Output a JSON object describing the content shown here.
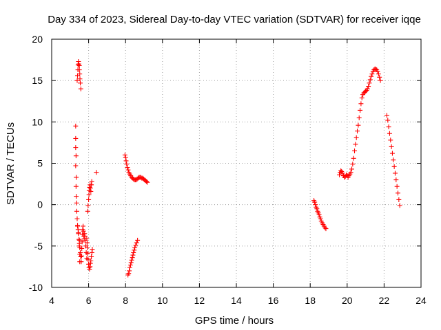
{
  "chart_data": {
    "type": "scatter",
    "title": "Day 334 of 2023, Sidereal Day-to-day VTEC variation (SDTVAR) for receiver iqqe",
    "xlabel": "GPS time / hours",
    "ylabel": "SDTVAR / TECUs",
    "xlim": [
      4,
      24
    ],
    "ylim": [
      -10,
      20
    ],
    "xticks": [
      "4",
      "6",
      "8",
      "10",
      "12",
      "14",
      "16",
      "18",
      "20",
      "22",
      "24"
    ],
    "yticks": [
      "-10",
      "-5",
      "0",
      "5",
      "10",
      "15",
      "20"
    ],
    "grid": true,
    "marker": "+",
    "color": "#ff0000",
    "series": [
      {
        "name": "SDTVAR",
        "points": [
          [
            5.3,
            9.5
          ],
          [
            5.3,
            8.0
          ],
          [
            5.3,
            6.9
          ],
          [
            5.32,
            5.9
          ],
          [
            5.3,
            4.7
          ],
          [
            5.33,
            3.3
          ],
          [
            5.32,
            2.2
          ],
          [
            5.33,
            1.0
          ],
          [
            5.35,
            0.2
          ],
          [
            5.36,
            -0.8
          ],
          [
            5.38,
            -1.7
          ],
          [
            5.4,
            -2.6
          ],
          [
            5.45,
            -3.4
          ],
          [
            5.5,
            -4.3
          ],
          [
            5.5,
            -5.0
          ],
          [
            5.52,
            -6.0
          ],
          [
            5.52,
            -6.9
          ],
          [
            5.38,
            15.0
          ],
          [
            5.4,
            15.6
          ],
          [
            5.42,
            16.3
          ],
          [
            5.43,
            16.9
          ],
          [
            5.45,
            17.3
          ],
          [
            5.47,
            17.0
          ],
          [
            5.5,
            16.8
          ],
          [
            5.5,
            16.3
          ],
          [
            5.52,
            15.8
          ],
          [
            5.53,
            15.2
          ],
          [
            5.55,
            14.7
          ],
          [
            5.58,
            14.0
          ],
          [
            5.4,
            -2.5
          ],
          [
            5.43,
            -3.0
          ],
          [
            5.45,
            -3.5
          ],
          [
            5.48,
            -4.2
          ],
          [
            5.5,
            -4.7
          ],
          [
            5.52,
            -5.2
          ],
          [
            5.55,
            -5.8
          ],
          [
            5.57,
            -6.3
          ],
          [
            5.6,
            -6.9
          ],
          [
            5.62,
            -6.2
          ],
          [
            5.63,
            -5.3
          ],
          [
            5.65,
            -4.5
          ],
          [
            5.67,
            -3.6
          ],
          [
            5.68,
            -3.0
          ],
          [
            5.7,
            -2.6
          ],
          [
            5.72,
            -3.2
          ],
          [
            5.74,
            -3.8
          ],
          [
            5.76,
            -4.1
          ],
          [
            5.78,
            -3.5
          ],
          [
            5.8,
            -3.8
          ],
          [
            5.82,
            -4.3
          ],
          [
            5.85,
            -5.0
          ],
          [
            5.87,
            -5.8
          ],
          [
            5.9,
            -6.5
          ],
          [
            5.9,
            -4.1
          ],
          [
            5.92,
            -4.6
          ],
          [
            5.93,
            -5.2
          ],
          [
            5.95,
            -5.9
          ],
          [
            5.97,
            -6.6
          ],
          [
            6.0,
            -7.2
          ],
          [
            6.02,
            -7.6
          ],
          [
            6.05,
            -7.8
          ],
          [
            6.08,
            -7.5
          ],
          [
            6.1,
            -7.1
          ],
          [
            6.12,
            -6.8
          ],
          [
            6.15,
            -6.3
          ],
          [
            6.18,
            -5.8
          ],
          [
            6.2,
            -5.4
          ],
          [
            5.95,
            -0.8
          ],
          [
            5.97,
            -0.1
          ],
          [
            6.0,
            0.6
          ],
          [
            6.02,
            1.2
          ],
          [
            6.03,
            1.7
          ],
          [
            6.05,
            2.1
          ],
          [
            6.08,
            2.4
          ],
          [
            6.1,
            2.0
          ],
          [
            6.12,
            1.6
          ],
          [
            6.15,
            2.4
          ],
          [
            6.17,
            2.8
          ],
          [
            6.42,
            3.9
          ],
          [
            7.97,
            6.0
          ],
          [
            8.0,
            5.7
          ],
          [
            8.03,
            5.3
          ],
          [
            8.06,
            4.9
          ],
          [
            8.1,
            4.5
          ],
          [
            8.14,
            4.2
          ],
          [
            8.18,
            3.9
          ],
          [
            8.23,
            3.7
          ],
          [
            8.28,
            3.5
          ],
          [
            8.33,
            3.3
          ],
          [
            8.38,
            3.2
          ],
          [
            8.43,
            3.1
          ],
          [
            8.48,
            3.0
          ],
          [
            8.53,
            3.0
          ],
          [
            8.58,
            3.0
          ],
          [
            8.63,
            3.1
          ],
          [
            8.68,
            3.2
          ],
          [
            8.73,
            3.3
          ],
          [
            8.78,
            3.3
          ],
          [
            8.83,
            3.3
          ],
          [
            8.88,
            3.2
          ],
          [
            8.93,
            3.2
          ],
          [
            8.98,
            3.1
          ],
          [
            9.03,
            3.0
          ],
          [
            9.08,
            2.9
          ],
          [
            9.13,
            2.8
          ],
          [
            9.18,
            2.7
          ],
          [
            8.13,
            -8.5
          ],
          [
            8.17,
            -8.3
          ],
          [
            8.2,
            -8.0
          ],
          [
            8.23,
            -7.6
          ],
          [
            8.27,
            -7.3
          ],
          [
            8.3,
            -7.0
          ],
          [
            8.33,
            -6.7
          ],
          [
            8.37,
            -6.4
          ],
          [
            8.4,
            -6.1
          ],
          [
            8.43,
            -5.8
          ],
          [
            8.47,
            -5.5
          ],
          [
            8.5,
            -5.2
          ],
          [
            8.55,
            -4.9
          ],
          [
            8.6,
            -4.6
          ],
          [
            8.65,
            -4.3
          ],
          [
            18.2,
            0.5
          ],
          [
            18.24,
            0.3
          ],
          [
            18.28,
            0.0
          ],
          [
            18.32,
            -0.3
          ],
          [
            18.36,
            -0.5
          ],
          [
            18.4,
            -0.8
          ],
          [
            18.44,
            -1.0
          ],
          [
            18.48,
            -1.2
          ],
          [
            18.52,
            -1.5
          ],
          [
            18.56,
            -1.7
          ],
          [
            18.6,
            -2.0
          ],
          [
            18.65,
            -2.2
          ],
          [
            18.7,
            -2.4
          ],
          [
            18.75,
            -2.6
          ],
          [
            18.8,
            -2.8
          ],
          [
            18.85,
            -2.9
          ],
          [
            19.58,
            3.6
          ],
          [
            19.62,
            3.9
          ],
          [
            19.66,
            4.1
          ],
          [
            19.7,
            4.0
          ],
          [
            19.75,
            3.8
          ],
          [
            19.8,
            3.5
          ],
          [
            19.85,
            3.3
          ],
          [
            19.9,
            3.4
          ],
          [
            19.95,
            3.6
          ],
          [
            20.0,
            3.5
          ],
          [
            20.05,
            3.3
          ],
          [
            20.1,
            3.5
          ],
          [
            20.15,
            3.7
          ],
          [
            20.2,
            3.9
          ],
          [
            20.25,
            4.3
          ],
          [
            20.3,
            4.9
          ],
          [
            20.35,
            5.6
          ],
          [
            20.4,
            6.5
          ],
          [
            20.45,
            7.3
          ],
          [
            20.5,
            8.1
          ],
          [
            20.55,
            8.9
          ],
          [
            20.6,
            9.6
          ],
          [
            20.65,
            10.5
          ],
          [
            20.7,
            11.4
          ],
          [
            20.75,
            12.2
          ],
          [
            20.8,
            12.9
          ],
          [
            20.85,
            13.3
          ],
          [
            20.9,
            13.5
          ],
          [
            20.95,
            13.6
          ],
          [
            21.0,
            13.7
          ],
          [
            21.05,
            13.8
          ],
          [
            21.1,
            14.0
          ],
          [
            21.15,
            14.3
          ],
          [
            21.2,
            14.7
          ],
          [
            21.25,
            15.1
          ],
          [
            21.3,
            15.5
          ],
          [
            21.35,
            15.8
          ],
          [
            21.4,
            16.1
          ],
          [
            21.45,
            16.3
          ],
          [
            21.5,
            16.4
          ],
          [
            21.55,
            16.4
          ],
          [
            21.6,
            16.3
          ],
          [
            21.65,
            16.1
          ],
          [
            21.7,
            15.8
          ],
          [
            21.75,
            15.4
          ],
          [
            21.8,
            15.0
          ],
          [
            22.15,
            10.8
          ],
          [
            22.2,
            10.2
          ],
          [
            22.25,
            9.4
          ],
          [
            22.3,
            8.6
          ],
          [
            22.35,
            7.8
          ],
          [
            22.4,
            7.0
          ],
          [
            22.45,
            6.2
          ],
          [
            22.5,
            5.4
          ],
          [
            22.55,
            4.6
          ],
          [
            22.6,
            3.8
          ],
          [
            22.65,
            3.0
          ],
          [
            22.7,
            2.2
          ],
          [
            22.75,
            1.4
          ],
          [
            22.8,
            0.6
          ],
          [
            22.85,
            -0.1
          ]
        ]
      }
    ]
  }
}
